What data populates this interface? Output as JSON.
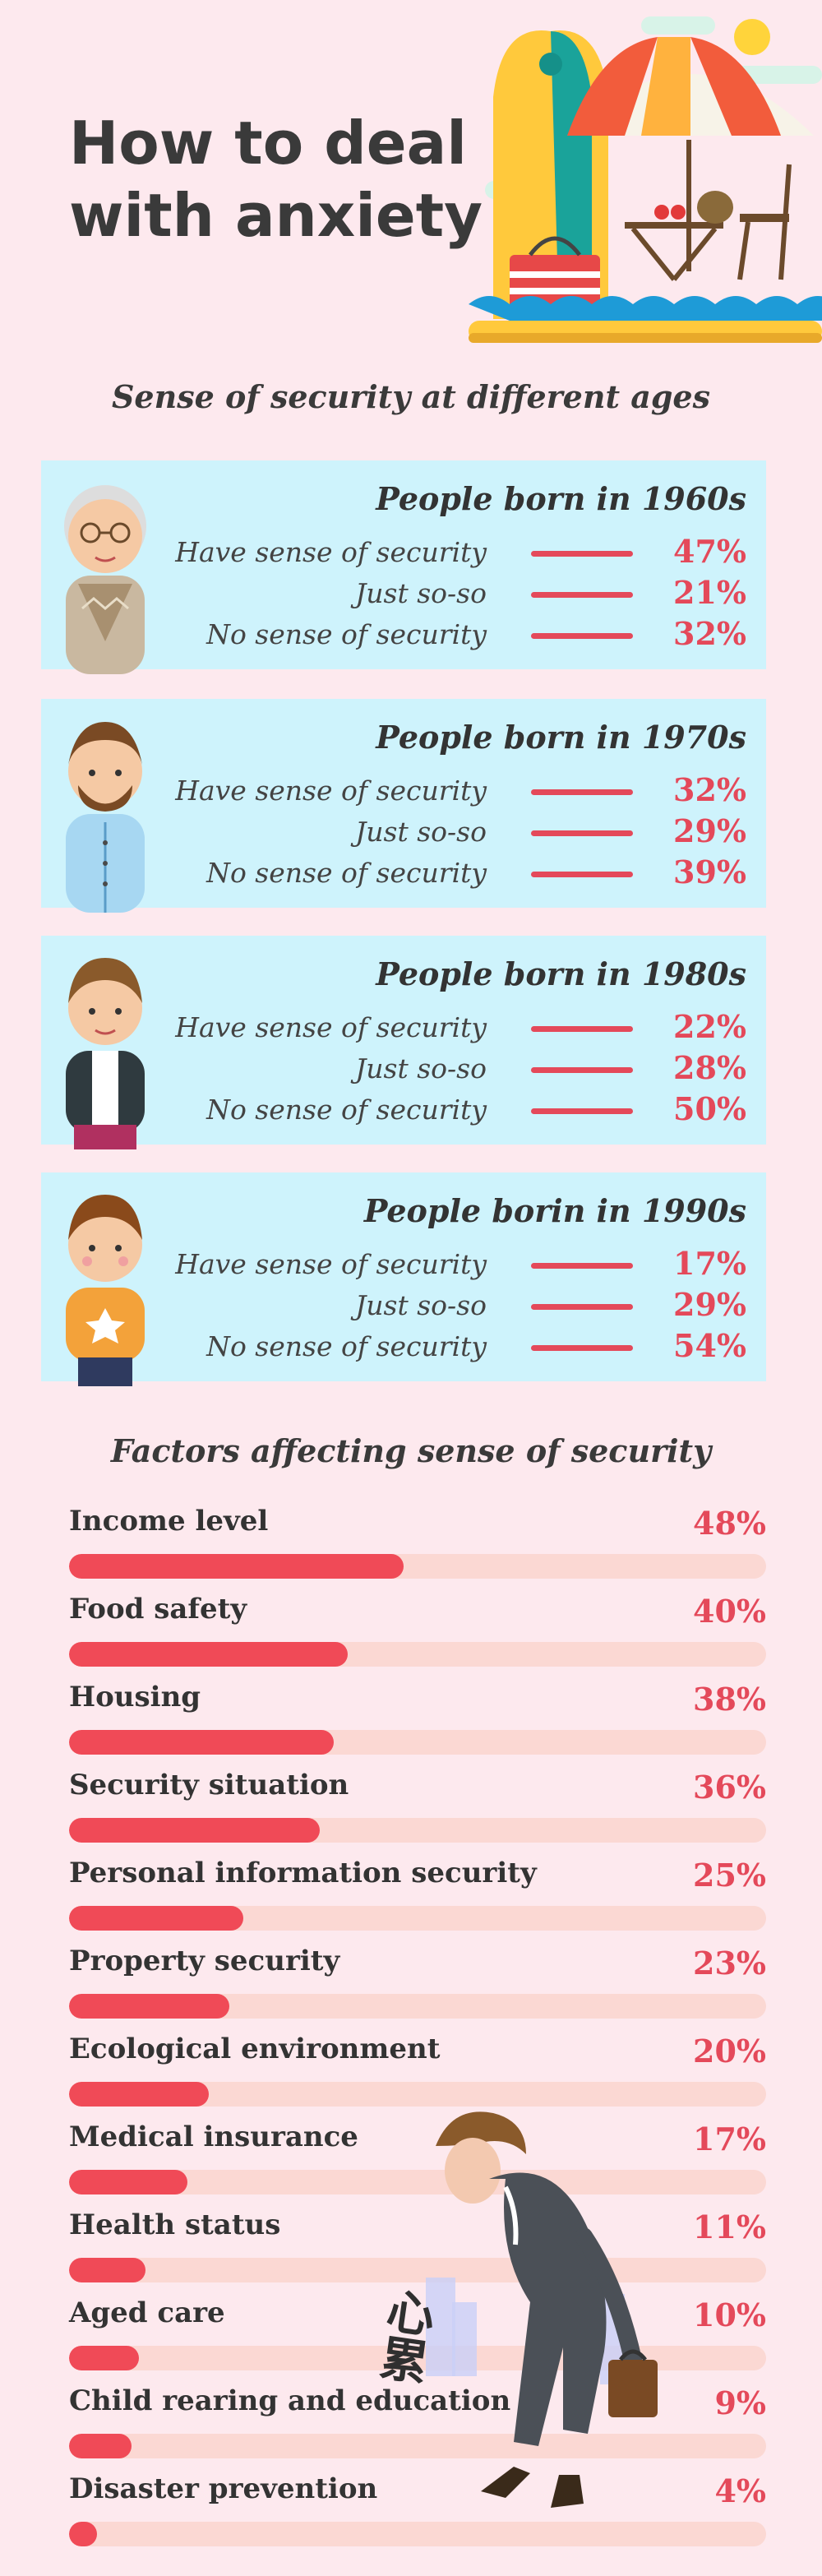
{
  "header": {
    "title": "How to deal with anxiety"
  },
  "generations": {
    "section_title": "Sense of security at different ages",
    "panels": [
      {
        "title": "People born in 1960s",
        "avatar": "elderly-man-icon",
        "rows": [
          {
            "label": "Have sense of security",
            "value": "47%"
          },
          {
            "label": "Just so-so",
            "value": "21%"
          },
          {
            "label": "No sense of security",
            "value": "32%"
          }
        ]
      },
      {
        "title": "People born in 1970s",
        "avatar": "bearded-man-icon",
        "rows": [
          {
            "label": "Have sense of security",
            "value": "32%"
          },
          {
            "label": "Just so-so",
            "value": "29%"
          },
          {
            "label": "No sense of security",
            "value": "39%"
          }
        ]
      },
      {
        "title": "People born in 1980s",
        "avatar": "young-man-icon",
        "rows": [
          {
            "label": "Have sense of security",
            "value": "22%"
          },
          {
            "label": "Just so-so",
            "value": "28%"
          },
          {
            "label": "No sense of security",
            "value": "50%"
          }
        ]
      },
      {
        "title": "People borin in 1990s",
        "avatar": "boy-icon",
        "rows": [
          {
            "label": "Have sense of security",
            "value": "17%"
          },
          {
            "label": "Just so-so",
            "value": "29%"
          },
          {
            "label": "No sense of security",
            "value": "54%"
          }
        ]
      }
    ]
  },
  "factors": {
    "section_title": "Factors affecting sense of security",
    "items": [
      {
        "label": "Income level",
        "value": "48%"
      },
      {
        "label": "Food safety",
        "value": "40%"
      },
      {
        "label": "Housing",
        "value": "38%"
      },
      {
        "label": "Security situation",
        "value": "36%"
      },
      {
        "label": "Personal information security",
        "value": "25%"
      },
      {
        "label": "Property security",
        "value": "23%"
      },
      {
        "label": "Ecological environment",
        "value": "20%"
      },
      {
        "label": "Medical insurance",
        "value": "17%"
      },
      {
        "label": "Health status",
        "value": "11%"
      },
      {
        "label": "Aged care",
        "value": "10%"
      },
      {
        "label": "Child rearing and education",
        "value": "9%"
      },
      {
        "label": "Disaster prevention",
        "value": "4%"
      }
    ]
  },
  "illustration": {
    "caption": "心累"
  },
  "colors": {
    "accent": "#e4495a",
    "bar": "#f04a57",
    "track": "#fbd8d3",
    "panel": "#cef3fc",
    "background": "#fde9ee"
  },
  "chart_data": [
    {
      "type": "table",
      "title": "Sense of security at different ages",
      "categories": [
        "People born in 1960s",
        "People born in 1970s",
        "People born in 1980s",
        "People borin in 1990s"
      ],
      "series": [
        {
          "name": "Have sense of security",
          "values": [
            47,
            32,
            22,
            17
          ]
        },
        {
          "name": "Just so-so",
          "values": [
            21,
            29,
            28,
            29
          ]
        },
        {
          "name": "No sense of security",
          "values": [
            32,
            39,
            50,
            54
          ]
        }
      ]
    },
    {
      "type": "bar",
      "title": "Factors affecting sense of security",
      "categories": [
        "Income level",
        "Food safety",
        "Housing",
        "Security situation",
        "Personal information security",
        "Property security",
        "Ecological environment",
        "Medical insurance",
        "Health status",
        "Aged care",
        "Child rearing and education",
        "Disaster prevention"
      ],
      "values": [
        48,
        40,
        38,
        36,
        25,
        23,
        20,
        17,
        11,
        10,
        9,
        4
      ],
      "ylim": [
        0,
        100
      ]
    }
  ]
}
